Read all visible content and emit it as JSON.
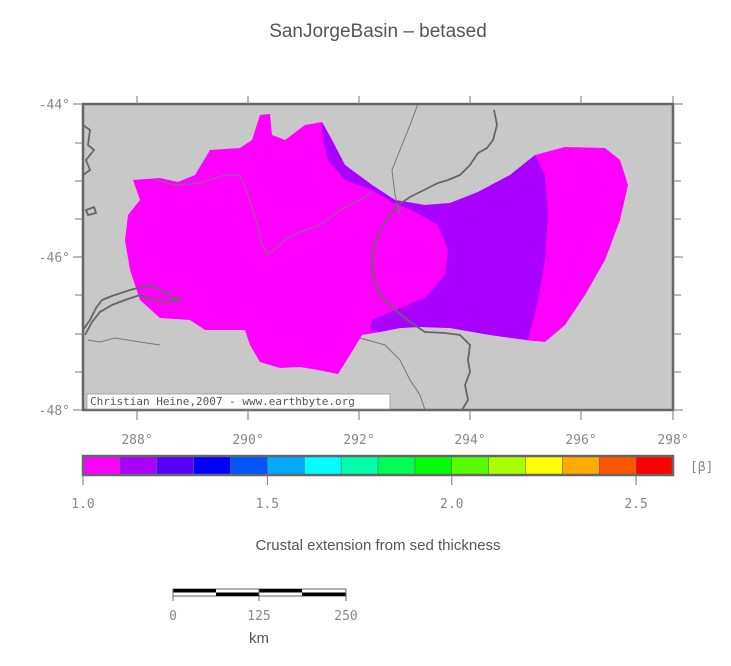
{
  "title": "SanJorgeBasin – betased",
  "map": {
    "lat_labels": [
      "-44°",
      "-46°",
      "-48°"
    ],
    "lon_labels": [
      "288°",
      "290°",
      "292°",
      "294°",
      "296°",
      "298°"
    ],
    "credit": "Christian Heine,2007 - www.earthbyte.org",
    "colors": {
      "ocean": "#c8c8c8",
      "coast": "#666666",
      "beta_1_0": "#ff00ff",
      "beta_1_1": "#aa00ff"
    }
  },
  "colorbar": {
    "unit_label": "[β]",
    "tick_labels": [
      "1.0",
      "1.5",
      "2.0",
      "2.5"
    ],
    "tick_values": [
      1.0,
      1.5,
      2.0,
      2.5
    ],
    "range": [
      1.0,
      2.6
    ],
    "colors": [
      "#ff00ff",
      "#aa00ff",
      "#5500ff",
      "#0000ff",
      "#0055ff",
      "#00aaff",
      "#00ffff",
      "#00ffaa",
      "#00ff55",
      "#00ff00",
      "#55ff00",
      "#aaff00",
      "#ffff00",
      "#ffaa00",
      "#ff5500",
      "#ff0000"
    ],
    "caption": "Crustal extension from sed thickness"
  },
  "scalebar": {
    "tick_labels": [
      "0",
      "125",
      "250"
    ],
    "unit": "km"
  }
}
